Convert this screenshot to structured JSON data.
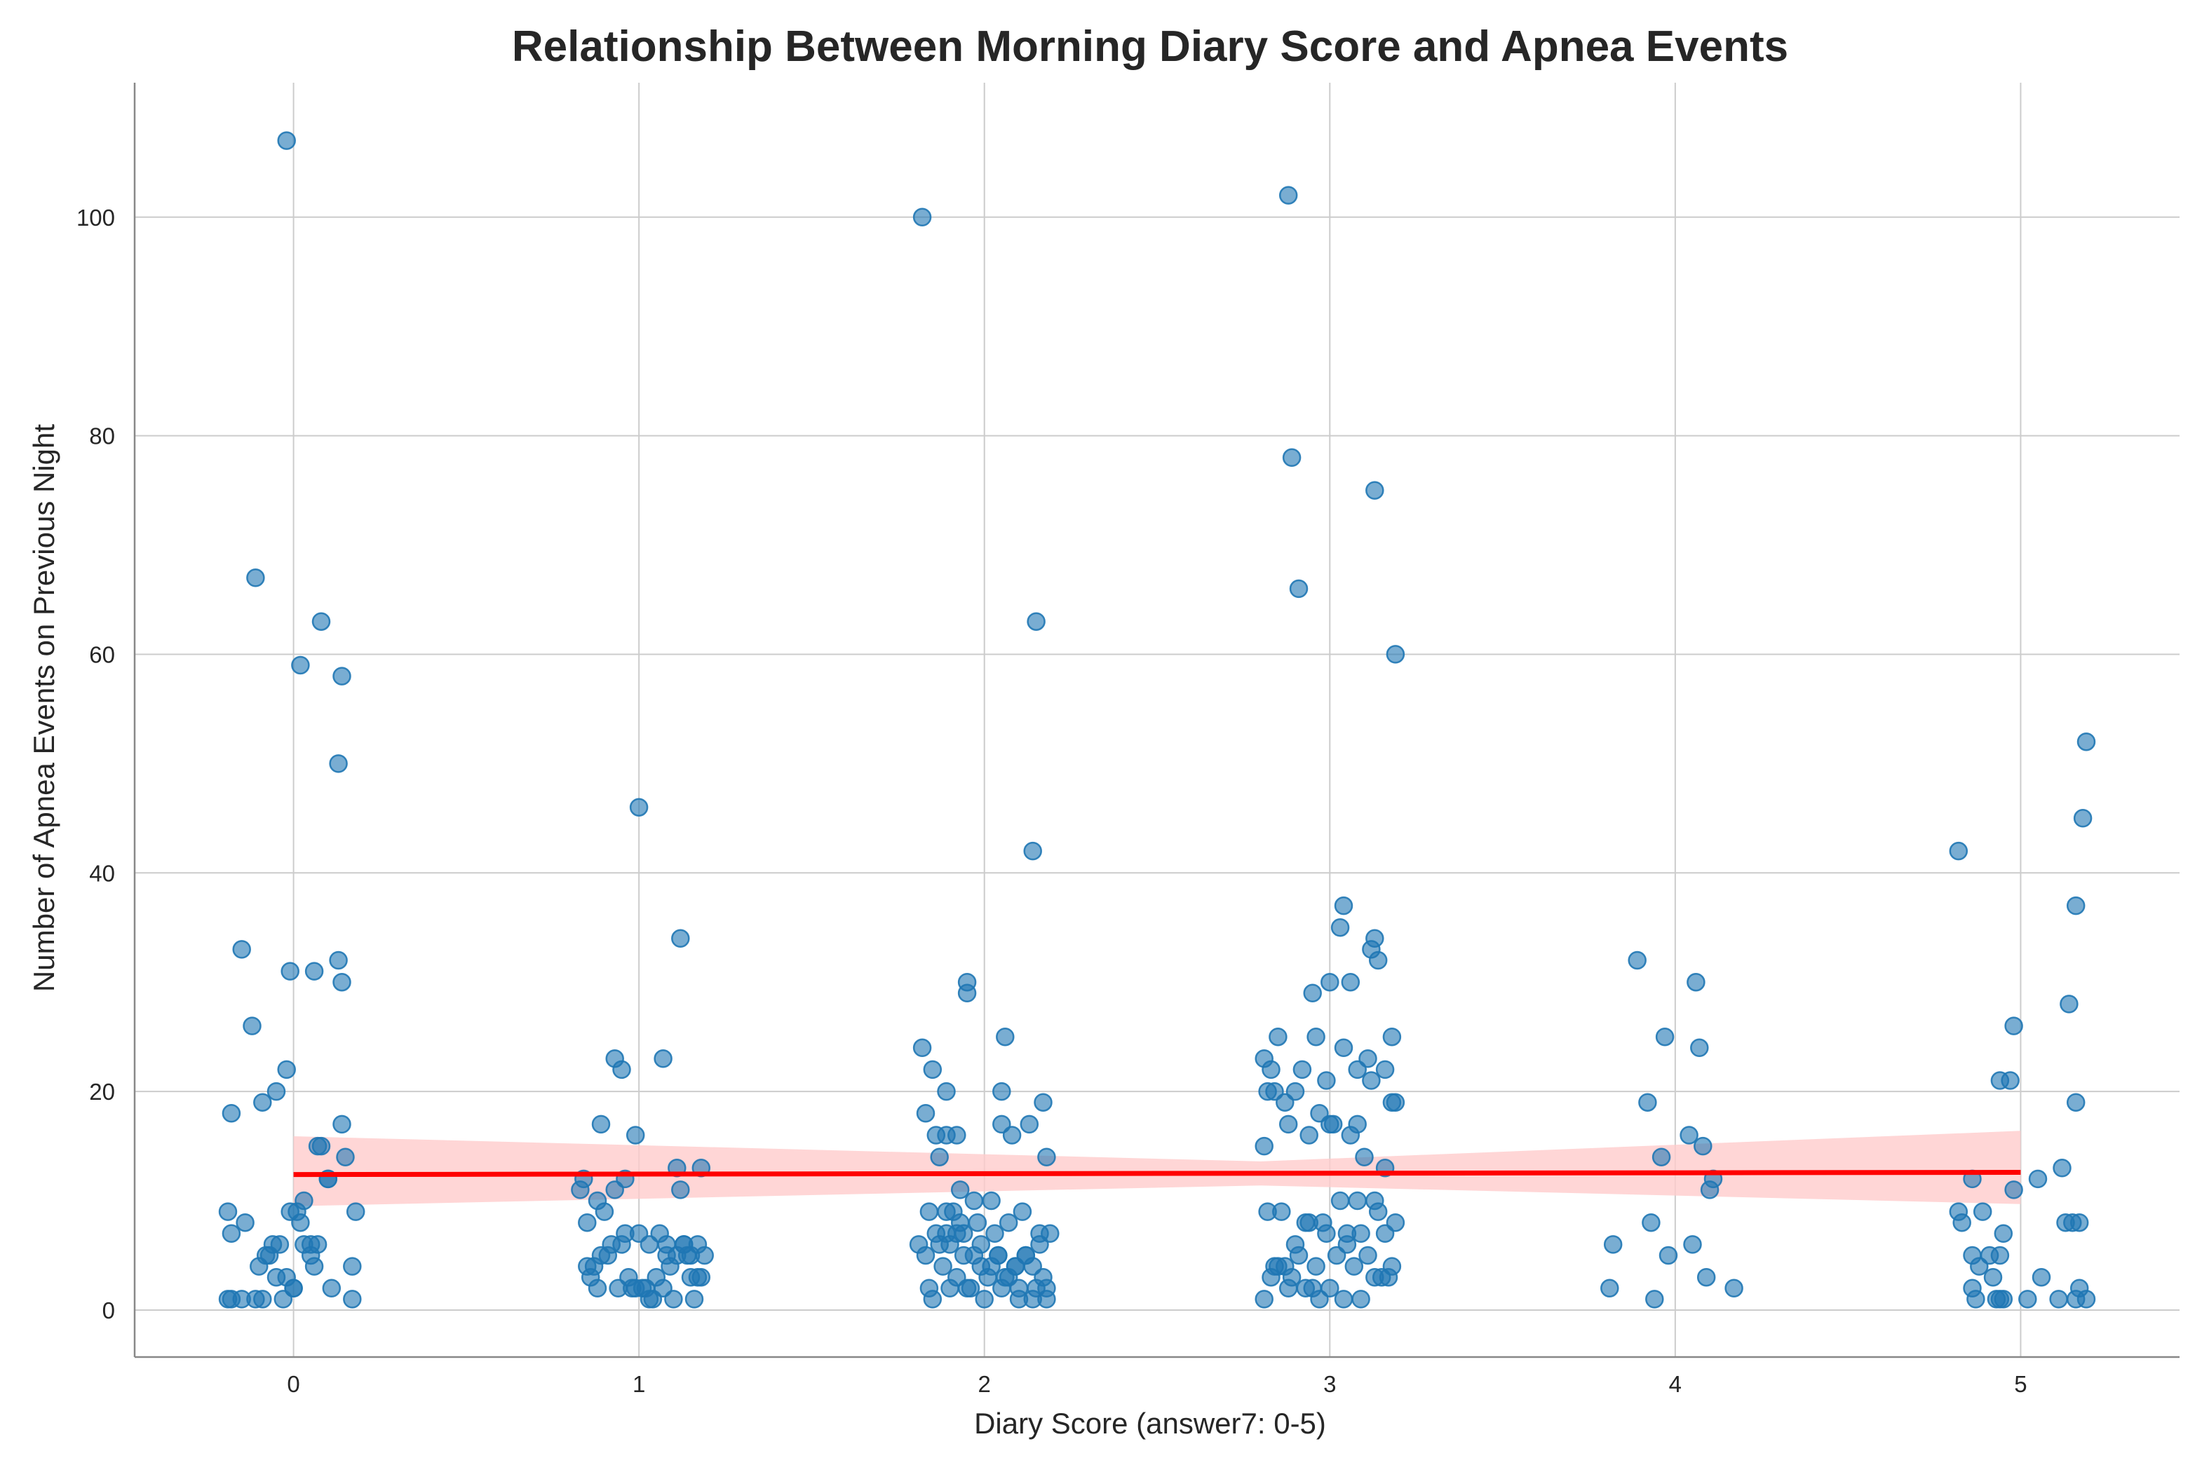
{
  "chart_data": {
    "type": "scatter",
    "title": "Relationship Between Morning Diary Score and Apnea Events",
    "xlabel": "Diary Score (answer7: 0-5)",
    "ylabel": "Number of Apnea Events on Previous Night",
    "xlim": [
      -0.46,
      5.46
    ],
    "ylim": [
      -4.3,
      112.3
    ],
    "xticks": [
      0,
      1,
      2,
      3,
      4,
      5
    ],
    "yticks": [
      0,
      20,
      40,
      60,
      80,
      100
    ],
    "grid": true,
    "legend": "none",
    "colors": {
      "points": "#1f77b4",
      "regression_line": "#ff0000",
      "confidence_band": "#ffcccc",
      "grid": "#cccccc",
      "axes": "#888888"
    },
    "regression": {
      "x": [
        0,
        5
      ],
      "y": [
        12.4,
        12.6
      ],
      "ci_upper": [
        15.9,
        16.4
      ],
      "ci_lower": [
        9.5,
        9.7
      ],
      "ci_mid_x": 2.8,
      "ci_mid_upper": 13.6,
      "ci_mid_lower": 11.4
    },
    "series": [
      {
        "x": [
          -0.02,
          -0.11,
          0.08,
          0.02,
          0.14,
          0.13,
          -0.15,
          -0.01,
          0.06,
          0.13,
          0.14,
          -0.12,
          -0.02,
          -0.05,
          -0.09,
          -0.18,
          0.14,
          0.07,
          0.15,
          -0.19,
          0.03,
          0.1,
          0.18,
          -0.14,
          -0.18,
          0.01,
          -0.08,
          0.05,
          -0.04,
          0.06,
          -0.1,
          0.03,
          -0.05,
          0.0,
          -0.03,
          0.07,
          -0.07,
          0.11,
          -0.11,
          0.17,
          -0.19,
          -0.15,
          -0.09,
          0.0,
          0.17,
          -0.18,
          0.05,
          -0.02,
          0.1,
          -0.01,
          0.08,
          -0.06,
          0.02
        ],
        "y": [
          107,
          67,
          63,
          59,
          58,
          50,
          33,
          31,
          31,
          32,
          30,
          26,
          22,
          20,
          19,
          18,
          17,
          15,
          14,
          9,
          10,
          12,
          9,
          8,
          7,
          9,
          5,
          5,
          6,
          4,
          4,
          6,
          3,
          2,
          1,
          6,
          5,
          2,
          1,
          1,
          1,
          1,
          1,
          2,
          4,
          1,
          6,
          3,
          12,
          9,
          15,
          6,
          8
        ]
      },
      {
        "x": [
          1.0,
          1.12,
          0.93,
          1.07,
          0.95,
          0.89,
          0.99,
          1.11,
          1.18,
          0.84,
          0.93,
          0.96,
          0.88,
          0.9,
          0.85,
          0.96,
          1.0,
          1.03,
          1.06,
          1.08,
          1.11,
          1.13,
          1.15,
          1.19,
          0.87,
          0.91,
          0.97,
          1.02,
          1.05,
          1.09,
          1.14,
          1.17,
          0.83,
          0.86,
          0.94,
          0.99,
          1.04,
          1.07,
          1.1,
          1.16,
          0.88,
          0.92,
          0.98,
          1.01,
          1.12,
          1.18,
          0.85,
          0.89,
          0.95,
          1.03,
          1.08,
          1.13,
          1.15,
          1.17
        ],
        "y": [
          46,
          34,
          23,
          23,
          22,
          17,
          16,
          13,
          13,
          12,
          11,
          12,
          10,
          9,
          8,
          7,
          7,
          6,
          7,
          6,
          5,
          6,
          5,
          5,
          4,
          5,
          3,
          2,
          3,
          4,
          5,
          3,
          11,
          3,
          2,
          2,
          1,
          2,
          1,
          1,
          2,
          6,
          2,
          2,
          11,
          3,
          4,
          5,
          6,
          1,
          5,
          6,
          3,
          6
        ]
      },
      {
        "x": [
          1.82,
          2.15,
          2.14,
          1.95,
          1.95,
          1.82,
          2.06,
          1.85,
          1.89,
          2.17,
          2.05,
          2.08,
          1.83,
          1.86,
          1.89,
          1.92,
          2.05,
          2.13,
          1.87,
          1.93,
          2.18,
          2.02,
          1.97,
          1.91,
          2.11,
          1.84,
          1.89,
          1.93,
          1.98,
          2.03,
          2.07,
          2.12,
          2.16,
          2.19,
          1.81,
          1.86,
          1.9,
          1.94,
          1.99,
          2.04,
          2.09,
          2.14,
          1.83,
          1.88,
          1.92,
          1.96,
          2.01,
          2.06,
          2.1,
          2.15,
          2.18,
          1.85,
          1.9,
          1.95,
          2.0,
          2.05,
          2.1,
          2.14,
          2.18,
          1.87,
          1.92,
          1.97,
          2.02,
          2.07,
          2.12,
          2.17,
          1.84,
          1.89,
          1.94,
          1.99,
          2.04,
          2.09,
          2.16
        ],
        "y": [
          100,
          63,
          42,
          30,
          29,
          24,
          25,
          22,
          20,
          19,
          20,
          16,
          18,
          16,
          16,
          16,
          17,
          17,
          14,
          11,
          14,
          10,
          10,
          9,
          9,
          9,
          7,
          8,
          8,
          7,
          8,
          5,
          7,
          7,
          6,
          7,
          6,
          5,
          4,
          5,
          4,
          4,
          5,
          4,
          3,
          2,
          3,
          3,
          2,
          2,
          2,
          1,
          2,
          2,
          1,
          2,
          1,
          1,
          1,
          6,
          7,
          5,
          4,
          3,
          5,
          3,
          2,
          9,
          7,
          6,
          5,
          4,
          6
        ]
      },
      {
        "x": [
          2.88,
          2.89,
          3.13,
          2.91,
          3.19,
          3.04,
          3.03,
          3.13,
          3.12,
          3.14,
          3.0,
          3.06,
          2.95,
          2.96,
          2.85,
          3.04,
          3.18,
          3.11,
          3.08,
          2.81,
          2.92,
          2.99,
          3.16,
          3.18,
          2.83,
          2.82,
          2.87,
          2.9,
          2.97,
          3.01,
          3.08,
          3.12,
          3.19,
          2.81,
          2.84,
          2.88,
          2.94,
          3.0,
          3.06,
          3.1,
          3.16,
          2.86,
          2.93,
          2.98,
          3.05,
          3.09,
          3.14,
          3.19,
          2.82,
          2.87,
          2.91,
          2.96,
          3.02,
          3.07,
          3.13,
          3.17,
          2.84,
          2.89,
          2.95,
          3.0,
          3.04,
          3.09,
          3.15,
          2.81,
          2.85,
          2.9,
          2.94,
          2.99,
          3.05,
          3.11,
          3.18,
          2.83,
          2.88,
          2.93,
          2.97,
          3.03,
          3.08,
          3.13,
          3.16
        ],
        "y": [
          102,
          78,
          75,
          66,
          60,
          37,
          35,
          34,
          33,
          32,
          30,
          30,
          29,
          25,
          25,
          24,
          25,
          23,
          22,
          23,
          22,
          21,
          22,
          19,
          22,
          20,
          19,
          20,
          18,
          17,
          17,
          21,
          19,
          15,
          20,
          17,
          16,
          17,
          16,
          14,
          13,
          9,
          8,
          8,
          7,
          7,
          9,
          8,
          9,
          4,
          5,
          4,
          5,
          4,
          3,
          3,
          4,
          3,
          2,
          2,
          1,
          1,
          3,
          1,
          4,
          6,
          8,
          7,
          6,
          5,
          4,
          3,
          2,
          2,
          1,
          10,
          10,
          10,
          7
        ]
      },
      {
        "x": [
          3.89,
          4.06,
          3.97,
          4.07,
          3.92,
          4.04,
          3.96,
          4.08,
          4.11,
          4.1,
          3.93,
          3.82,
          4.05,
          3.98,
          4.09,
          3.81,
          4.17,
          3.94
        ],
        "y": [
          32,
          30,
          25,
          24,
          19,
          16,
          14,
          15,
          12,
          11,
          8,
          6,
          6,
          5,
          3,
          2,
          2,
          1
        ]
      },
      {
        "x": [
          5.19,
          5.18,
          4.82,
          5.16,
          5.14,
          4.98,
          4.94,
          4.97,
          5.16,
          5.12,
          5.15,
          4.86,
          4.98,
          4.83,
          4.89,
          5.17,
          5.05,
          4.82,
          4.95,
          4.86,
          4.91,
          4.88,
          4.92,
          4.94,
          4.86,
          4.93,
          5.06,
          4.87,
          5.17,
          5.11,
          4.95,
          4.94,
          5.02,
          5.13,
          5.16,
          5.19
        ],
        "y": [
          52,
          45,
          42,
          37,
          28,
          26,
          21,
          21,
          19,
          13,
          8,
          12,
          11,
          8,
          9,
          8,
          12,
          9,
          7,
          5,
          5,
          4,
          3,
          5,
          2,
          1,
          3,
          1,
          2,
          1,
          1,
          1,
          1,
          8,
          1,
          1
        ]
      }
    ]
  }
}
